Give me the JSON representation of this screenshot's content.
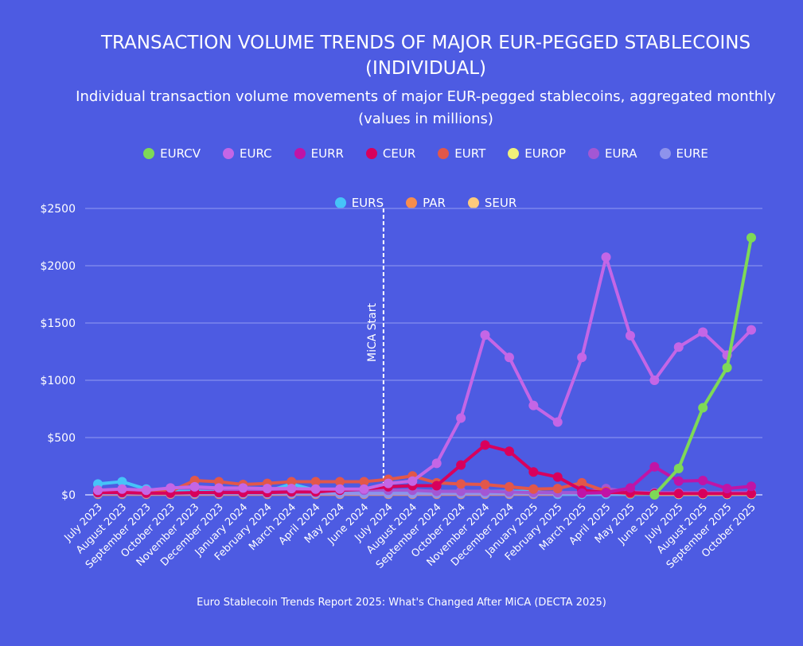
{
  "chart_data": {
    "type": "line",
    "title": "TRANSACTION VOLUME TRENDS OF MAJOR EUR-PEGGED STABLECOINS (INDIVIDUAL)",
    "subtitle": "Individual transaction volume movements of major EUR-pegged stablecoins, aggregated monthly (values in millions)",
    "source": "Euro Stablecoin Trends Report 2025: What's Changed After MiCA (DECTA 2025)",
    "ylim": [
      0,
      2500
    ],
    "yticks": [
      "$0",
      "$500",
      "$1000",
      "$1500",
      "$2000",
      "$2500"
    ],
    "ytick_values": [
      0,
      500,
      1000,
      1500,
      2000,
      2500
    ],
    "grid": true,
    "legend_position": "top",
    "annotation": {
      "label": "MiCA Start",
      "x": "July 2024"
    },
    "categories": [
      "July 2023",
      "August 2023",
      "September 2023",
      "October 2023",
      "November 2023",
      "December 2023",
      "January 2024",
      "February 2024",
      "March 2024",
      "April 2024",
      "May 2024",
      "June 2024",
      "July 2024",
      "August 2024",
      "September 2024",
      "October 2024",
      "November 2024",
      "December 2024",
      "January 2025",
      "February 2025",
      "March 2025",
      "April 2025",
      "May 2025",
      "June 2025",
      "July 2025",
      "August 2025",
      "September 2025",
      "October 2025"
    ],
    "series": [
      {
        "name": "EURCV",
        "color": "#7ed957",
        "values": [
          null,
          null,
          null,
          null,
          null,
          null,
          null,
          null,
          null,
          null,
          null,
          null,
          null,
          null,
          null,
          null,
          null,
          null,
          null,
          null,
          null,
          null,
          null,
          0,
          230,
          760,
          1110,
          2245
        ]
      },
      {
        "name": "EURC",
        "color": "#c466e6",
        "values": [
          40,
          50,
          40,
          60,
          70,
          60,
          60,
          55,
          55,
          50,
          50,
          50,
          100,
          120,
          275,
          670,
          1395,
          1200,
          780,
          635,
          1200,
          2075,
          1390,
          1000,
          1290,
          1420,
          1220,
          1440
        ]
      },
      {
        "name": "EURR",
        "color": "#c014a6",
        "values": [
          null,
          null,
          null,
          null,
          null,
          null,
          null,
          null,
          null,
          null,
          null,
          null,
          null,
          null,
          null,
          null,
          null,
          null,
          null,
          null,
          15,
          20,
          60,
          245,
          120,
          125,
          55,
          75
        ]
      },
      {
        "name": "CEUR",
        "color": "#d8005c",
        "values": [
          20,
          20,
          15,
          15,
          20,
          20,
          20,
          20,
          25,
          25,
          40,
          50,
          70,
          80,
          80,
          260,
          435,
          380,
          200,
          155,
          40,
          20,
          20,
          10,
          10,
          10,
          10,
          10
        ]
      },
      {
        "name": "EURT",
        "color": "#e2574a",
        "values": [
          40,
          45,
          30,
          30,
          125,
          115,
          90,
          100,
          115,
          115,
          115,
          115,
          135,
          165,
          105,
          95,
          90,
          70,
          50,
          55,
          105,
          30,
          10,
          10,
          10,
          10,
          10,
          10
        ]
      },
      {
        "name": "EUROP",
        "color": "#f0ef7a",
        "values": [
          null,
          null,
          null,
          null,
          null,
          null,
          null,
          null,
          null,
          null,
          null,
          null,
          null,
          null,
          null,
          null,
          null,
          null,
          null,
          null,
          null,
          null,
          null,
          5,
          5,
          5,
          5,
          5
        ]
      },
      {
        "name": "EURA",
        "color": "#a357d4",
        "values": [
          20,
          30,
          25,
          60,
          60,
          50,
          40,
          40,
          40,
          40,
          40,
          40,
          40,
          40,
          30,
          30,
          30,
          25,
          20,
          20,
          20,
          55,
          25,
          20,
          20,
          20,
          20,
          20
        ]
      },
      {
        "name": "EURE",
        "color": "#8e93ec",
        "values": [
          10,
          10,
          10,
          10,
          10,
          10,
          10,
          10,
          10,
          10,
          10,
          10,
          10,
          10,
          10,
          10,
          10,
          10,
          10,
          10,
          10,
          10,
          10,
          10,
          10,
          10,
          10,
          10
        ]
      },
      {
        "name": "EURS",
        "color": "#46c4f8",
        "values": [
          95,
          115,
          50,
          30,
          30,
          50,
          50,
          30,
          95,
          40,
          30,
          30,
          30,
          30,
          30,
          30,
          30,
          30,
          30,
          5,
          5,
          5,
          5,
          5,
          5,
          5,
          5,
          5
        ]
      },
      {
        "name": "PAR",
        "color": "#f88d4c",
        "values": [
          5,
          5,
          5,
          5,
          5,
          5,
          5,
          5,
          5,
          5,
          5,
          5,
          5,
          5,
          5,
          5,
          5,
          5,
          5,
          5,
          5,
          5,
          5,
          5,
          5,
          5,
          5,
          5
        ]
      },
      {
        "name": "SEUR",
        "color": "#fdca7c",
        "values": [
          10,
          10,
          10,
          10,
          10,
          10,
          10,
          10,
          10,
          10,
          10,
          10,
          10,
          10,
          10,
          10,
          10,
          10,
          10,
          10,
          10,
          10,
          10,
          10,
          10,
          10,
          10,
          10
        ]
      }
    ]
  }
}
